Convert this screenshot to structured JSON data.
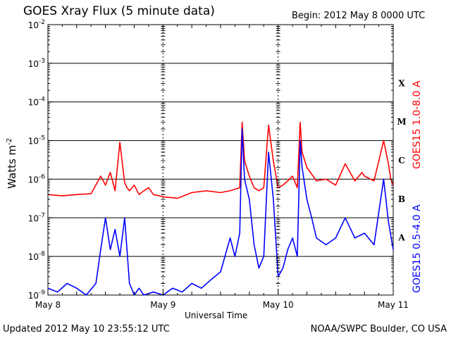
{
  "title": "GOES Xray Flux (5 minute data)",
  "begin": "Begin:  2012 May 8 0000 UTC",
  "updated": "Updated 2012 May 10 23:55:12 UTC",
  "credit": "NOAA/SWPC Boulder, CO USA",
  "colors": {
    "long": "#ff0000",
    "short": "#0000ff",
    "grid": "#000000",
    "background": "#ffffff"
  },
  "chart_data": {
    "type": "line",
    "title": "GOES Xray Flux (5 minute data)",
    "xlabel": "Universal Time",
    "ylabel": "Watts m-2",
    "ylabel_parts": {
      "main": "Watts m",
      "sup": "-2"
    },
    "yscale": "log",
    "ylim": [
      1e-09,
      0.01
    ],
    "xlim": [
      0,
      72
    ],
    "x_unit_note": "hours since 2012 May 8 0000 UTC",
    "x_tick_labels": [
      {
        "x": 0,
        "label": "May 8"
      },
      {
        "x": 24,
        "label": "May 9"
      },
      {
        "x": 48,
        "label": "May 10"
      },
      {
        "x": 72,
        "label": "May 11"
      }
    ],
    "y_ticks": [
      {
        "exp": -9
      },
      {
        "exp": -8
      },
      {
        "exp": -7
      },
      {
        "exp": -6
      },
      {
        "exp": -5
      },
      {
        "exp": -4
      },
      {
        "exp": -3
      },
      {
        "exp": -2
      }
    ],
    "flare_classes": [
      {
        "label": "A",
        "exp": -8
      },
      {
        "label": "B",
        "exp": -7
      },
      {
        "label": "C",
        "exp": -6
      },
      {
        "label": "M",
        "exp": -5
      },
      {
        "label": "X",
        "exp": -4
      }
    ],
    "series": [
      {
        "name": "GOES15 1.0-8.0 A",
        "key": "long",
        "x": [
          0,
          3,
          6,
          9,
          11,
          12,
          13,
          14,
          15,
          16,
          16.5,
          17,
          18,
          19,
          20,
          21,
          22,
          24,
          27,
          30,
          33,
          36,
          38,
          40,
          40.5,
          41,
          42,
          43,
          44,
          45,
          46,
          47,
          48,
          49,
          50,
          51,
          52,
          52.6,
          53,
          54,
          56,
          58,
          60,
          62,
          64,
          65.5,
          66,
          68,
          70,
          71,
          71.5,
          72
        ],
        "y": [
          4e-07,
          3.7e-07,
          4e-07,
          4.2e-07,
          1.2e-06,
          7e-07,
          1.5e-06,
          5e-07,
          9e-06,
          8e-07,
          6e-07,
          5e-07,
          7e-07,
          4e-07,
          5e-07,
          6e-07,
          4e-07,
          3.5e-07,
          3.2e-07,
          4.5e-07,
          5e-07,
          4.5e-07,
          5e-07,
          6e-07,
          3e-05,
          3e-06,
          1.2e-06,
          6e-07,
          5e-07,
          6e-07,
          2.5e-05,
          3e-06,
          6e-07,
          7e-07,
          9e-07,
          1.2e-06,
          6e-07,
          3e-05,
          5e-06,
          2e-06,
          9e-07,
          1e-06,
          7e-07,
          2.5e-06,
          9e-07,
          1.5e-06,
          1.2e-06,
          9e-07,
          1e-05,
          2.5e-06,
          1e-06,
          7e-07
        ]
      },
      {
        "name": "GOES15 0.5-4.0 A",
        "key": "short",
        "x": [
          0,
          2,
          4,
          6,
          8,
          10,
          11,
          12,
          13,
          14,
          15,
          16,
          17,
          18,
          19,
          20,
          22,
          24,
          26,
          28,
          30,
          32,
          34,
          36,
          38,
          39,
          40,
          40.5,
          41,
          42,
          43,
          44,
          45,
          46,
          47,
          48,
          49,
          50,
          51,
          52,
          52.6,
          53,
          54,
          55,
          56,
          58,
          60,
          62,
          64,
          66,
          68,
          70,
          71,
          72
        ],
        "y": [
          1.5e-09,
          1.2e-09,
          2e-09,
          1.5e-09,
          1e-09,
          2e-09,
          1.5e-08,
          1e-07,
          1.5e-08,
          5e-08,
          1e-08,
          1e-07,
          2e-09,
          1e-09,
          1.5e-09,
          1e-09,
          1.2e-09,
          1e-09,
          1.5e-09,
          1.2e-09,
          2e-09,
          1.5e-09,
          2.5e-09,
          4e-09,
          3e-08,
          1e-08,
          4e-08,
          2e-05,
          1e-06,
          3e-07,
          2e-08,
          5e-09,
          1e-08,
          5e-06,
          3e-07,
          3e-09,
          5e-09,
          1.5e-08,
          3e-08,
          1e-08,
          1e-05,
          2e-06,
          3e-07,
          1e-07,
          3e-08,
          2e-08,
          3e-08,
          1e-07,
          3e-08,
          4e-08,
          2e-08,
          1e-06,
          8e-08,
          1.5e-08
        ]
      }
    ]
  }
}
